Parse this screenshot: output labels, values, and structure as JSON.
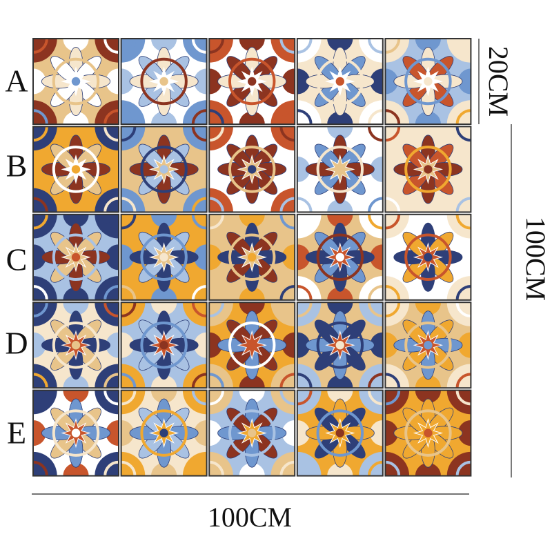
{
  "row_labels": [
    "A",
    "B",
    "C",
    "D",
    "E"
  ],
  "dimensions": {
    "tile_height": "20CM",
    "total_height": "100CM",
    "total_width": "100CM"
  }
}
